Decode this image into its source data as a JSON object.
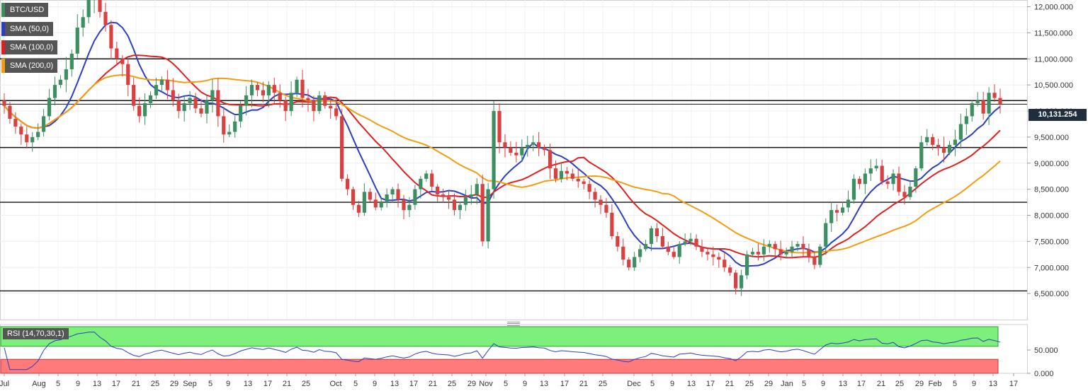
{
  "symbol": "BTC/USD",
  "indicators": [
    {
      "label": "SMA (50,0)",
      "color": "#2b3fc0"
    },
    {
      "label": "SMA (100,0)",
      "color": "#e02020"
    },
    {
      "label": "SMA (200,0)",
      "color": "#f39c12"
    }
  ],
  "current_price_label": "10,131.254",
  "rsi_label": "RSI (14,70,30,1)",
  "colors": {
    "bullish": "#3d8f62",
    "bearish": "#d94040",
    "rsi_line": "#2b3fc0",
    "rsi_overbought": "#7cf07a",
    "rsi_oversold": "#ff7b7b"
  },
  "chart_data": [
    {
      "type": "candlestick",
      "title": "BTC/USD",
      "ylim": [
        6200,
        12400
      ],
      "y_ticks": [
        "12,000.000",
        "11,500.000",
        "11,000.000",
        "10,500.000",
        "10,000.000",
        "9,500.000",
        "9,000.000",
        "8,500.000",
        "8,000.000",
        "7,500.000",
        "7,000.000",
        "6,500.000"
      ],
      "x_ticks": [
        "Jul",
        "Aug",
        "5",
        "9",
        "13",
        "17",
        "21",
        "25",
        "29",
        "Sep",
        "5",
        "9",
        "13",
        "17",
        "21",
        "25",
        "Oct",
        "5",
        "9",
        "13",
        "17",
        "21",
        "25",
        "29",
        "Nov",
        "5",
        "9",
        "13",
        "17",
        "21",
        "25",
        "Dec",
        "5",
        "9",
        "13",
        "17",
        "21",
        "25",
        "29",
        "Jan",
        "5",
        "9",
        "13",
        "17",
        "21",
        "25",
        "29",
        "Feb",
        "5",
        "9",
        "13",
        "17"
      ],
      "horizontal_levels": [
        11000,
        10200,
        9300,
        8250,
        6550
      ],
      "current_price": 10131.254,
      "closes": [
        10100,
        9850,
        9700,
        9550,
        9400,
        9500,
        9600,
        9900,
        10250,
        10500,
        10600,
        10800,
        11100,
        11600,
        11800,
        12150,
        12200,
        11900,
        11650,
        11200,
        11000,
        10900,
        10500,
        10100,
        9900,
        10150,
        10300,
        10500,
        10600,
        10400,
        10200,
        10000,
        10150,
        10250,
        10050,
        9950,
        10200,
        10400,
        9900,
        9550,
        9600,
        9800,
        10100,
        10300,
        10500,
        10400,
        10300,
        10500,
        10350,
        10200,
        10000,
        10350,
        10600,
        10250,
        10200,
        10000,
        10300,
        10100,
        10050,
        9900,
        8700,
        8500,
        8200,
        8050,
        8450,
        8300,
        8150,
        8250,
        8400,
        8500,
        8300,
        8100,
        8200,
        8500,
        8700,
        8800,
        8550,
        8400,
        8350,
        8300,
        8100,
        8200,
        8350,
        8400,
        8600,
        7500,
        8500,
        10000,
        9400,
        9300,
        9200,
        9150,
        9300,
        9350,
        9400,
        9300,
        9250,
        8900,
        8700,
        8850,
        8800,
        8700,
        8650,
        8600,
        8450,
        8300,
        8200,
        8050,
        7600,
        7400,
        7150,
        7000,
        7200,
        7350,
        7450,
        7750,
        7600,
        7400,
        7300,
        7200,
        7450,
        7500,
        7550,
        7400,
        7300,
        7250,
        7200,
        7150,
        7000,
        6900,
        6600,
        6850,
        7250,
        7300,
        7250,
        7400,
        7450,
        7350,
        7250,
        7300,
        7400,
        7450,
        7350,
        7200,
        7050,
        7400,
        7850,
        8100,
        8050,
        8150,
        8300,
        8700,
        8600,
        8800,
        8900,
        8950,
        8650,
        8600,
        8800,
        8450,
        8350,
        8550,
        8900,
        9400,
        9500,
        9350,
        9300,
        9200,
        9350,
        9450,
        9750,
        9900,
        10150,
        10200,
        9950,
        10350,
        10250,
        10131.254
      ]
    },
    {
      "type": "line",
      "title": "RSI (14,70,30,1)",
      "ylim": [
        0,
        100
      ],
      "y_ticks": [
        "50.000",
        "0.000"
      ],
      "overbought": 70,
      "oversold": 30
    }
  ]
}
